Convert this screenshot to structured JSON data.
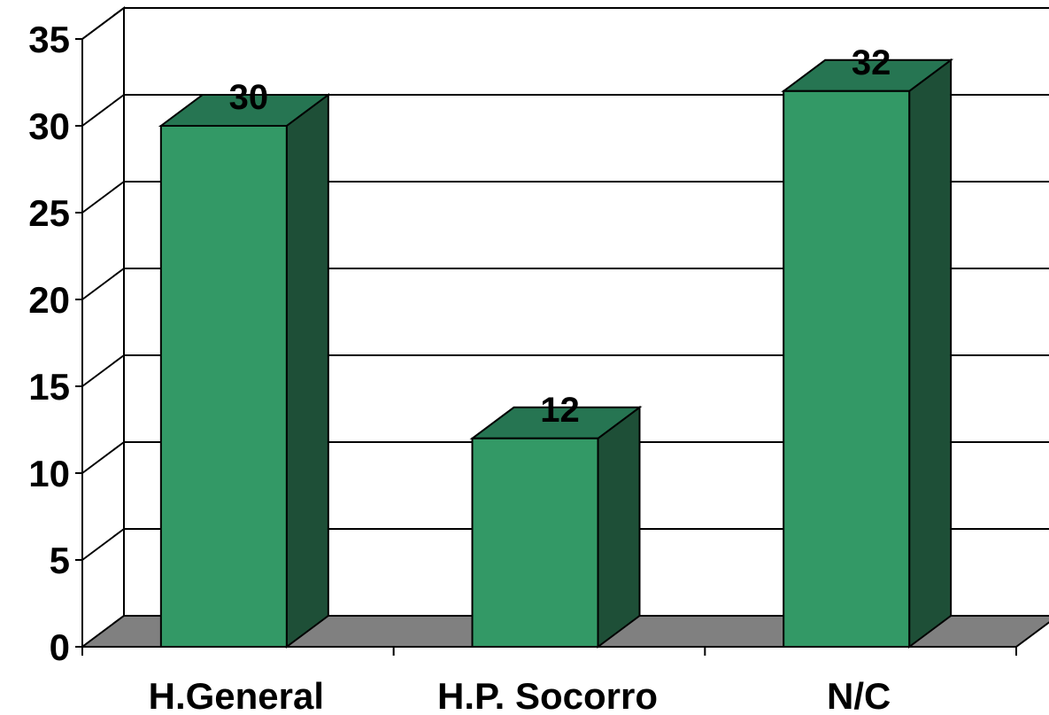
{
  "chart_data": {
    "type": "bar",
    "categories": [
      "H.General",
      "H.P. Socorro",
      "N/C"
    ],
    "values": [
      30,
      12,
      32
    ],
    "data_labels": [
      "30",
      "12",
      "32"
    ],
    "ylim": [
      0,
      35
    ],
    "yticks": [
      "0",
      "5",
      "10",
      "15",
      "20",
      "25",
      "30",
      "35"
    ],
    "grid": true,
    "three_d": true,
    "colors": {
      "bar_front": "#339966",
      "bar_top": "#267552",
      "bar_side": "#1e4f37",
      "floor": "#808080"
    }
  }
}
